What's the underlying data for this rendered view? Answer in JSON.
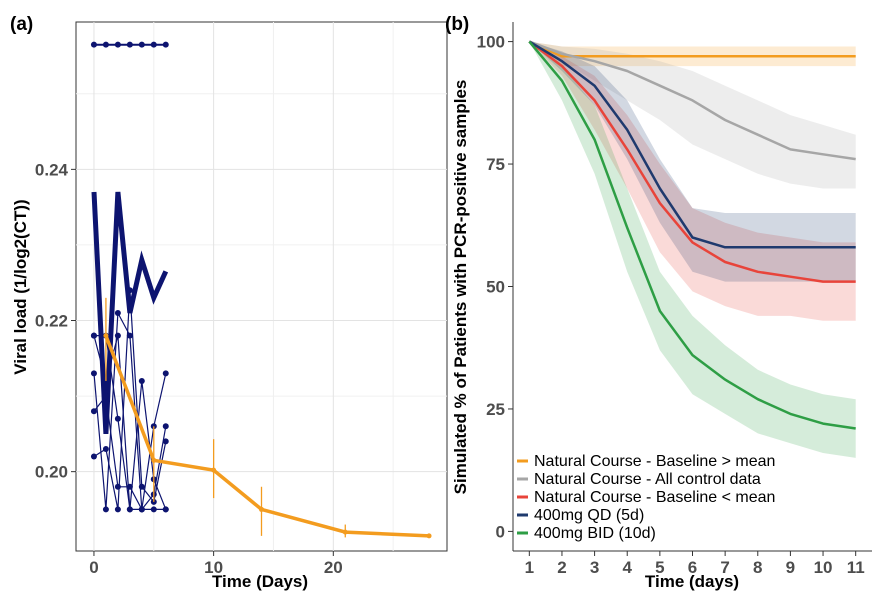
{
  "chart_data": [
    {
      "panel_label": "(a)",
      "type": "line",
      "xlabel": "Time (Days)",
      "ylabel": "Viral load (1/log2(CT))",
      "xlim": [
        -1.5,
        29.5
      ],
      "ylim": [
        0.1895,
        0.2595
      ],
      "x_ticks": [
        0,
        10,
        20
      ],
      "x_tick_labels": [
        "0",
        "10",
        "20"
      ],
      "y_ticks": [
        0.2,
        0.22,
        0.24
      ],
      "y_tick_labels": [
        "0.20",
        "0.22",
        "0.24"
      ],
      "grid": true,
      "colors": {
        "individual": "#0d1470",
        "mean": "#f39c1f"
      },
      "individual_series": [
        {
          "x": [
            0,
            1,
            2,
            3,
            4,
            5,
            6
          ],
          "y": [
            0.2565,
            0.2565,
            0.2565,
            0.2565,
            0.2565,
            0.2565,
            0.2565
          ],
          "markers": true,
          "width": 2
        },
        {
          "x": [
            0,
            1,
            2,
            3,
            4,
            5,
            6
          ],
          "y": [
            0.237,
            0.205,
            0.237,
            0.221,
            0.228,
            0.223,
            0.2265
          ],
          "markers": false,
          "width": 5
        },
        {
          "x": [
            0,
            1,
            2,
            3,
            4,
            5,
            6
          ],
          "y": [
            0.218,
            0.218,
            0.207,
            0.195,
            0.195,
            0.195,
            0.195
          ],
          "markers": true,
          "width": 1.2
        },
        {
          "x": [
            0,
            1,
            2,
            3,
            4,
            5,
            6
          ],
          "y": [
            0.213,
            0.195,
            0.221,
            0.218,
            0.195,
            0.206,
            0.213
          ],
          "markers": true,
          "width": 1.2
        },
        {
          "x": [
            0,
            1,
            2,
            3,
            4,
            5,
            6
          ],
          "y": [
            0.208,
            0.21,
            0.198,
            0.198,
            0.195,
            0.197,
            0.206
          ],
          "markers": true,
          "width": 1.2
        },
        {
          "x": [
            0,
            1,
            2,
            3,
            4,
            5,
            6
          ],
          "y": [
            0.202,
            0.203,
            0.195,
            0.224,
            0.198,
            0.196,
            0.204
          ],
          "markers": true,
          "width": 1.2
        },
        {
          "x": [
            0,
            1,
            2,
            3,
            4,
            5,
            6
          ],
          "y": [
            0.218,
            0.212,
            0.218,
            0.195,
            0.212,
            0.199,
            0.195
          ],
          "markers": true,
          "width": 1.2
        }
      ],
      "mean_series": {
        "x": [
          1,
          5,
          10,
          14,
          21,
          28
        ],
        "y": [
          0.218,
          0.2015,
          0.2002,
          0.195,
          0.192,
          0.1915
        ],
        "err_low": [
          0.212,
          0.196,
          0.1965,
          0.1915,
          0.1913,
          0.1913
        ],
        "err_high": [
          0.223,
          0.206,
          0.2043,
          0.198,
          0.193,
          0.1917
        ]
      }
    },
    {
      "panel_label": "(b)",
      "type": "line",
      "xlabel": "Time (days)",
      "ylabel": "Simulated % of Patients with PCR-positive samples",
      "xlim": [
        0.5,
        11.5
      ],
      "ylim": [
        -4,
        104
      ],
      "x_ticks": [
        1,
        2,
        3,
        4,
        5,
        6,
        7,
        8,
        9,
        10,
        11
      ],
      "x_tick_labels": [
        "1",
        "2",
        "3",
        "4",
        "5",
        "6",
        "7",
        "8",
        "9",
        "10",
        "11"
      ],
      "y_ticks": [
        0,
        25,
        50,
        75,
        100
      ],
      "y_tick_labels": [
        "0",
        "25",
        "50",
        "75",
        "100"
      ],
      "grid": false,
      "legend_position": "bottom-left",
      "x": [
        1,
        2,
        3,
        4,
        5,
        6,
        7,
        8,
        9,
        10,
        11
      ],
      "series": [
        {
          "name": "Natural Course - Baseline > mean",
          "color": "#f39c1f",
          "values": [
            100,
            97,
            97,
            97,
            97,
            97,
            97,
            97,
            97,
            97,
            97
          ],
          "lower": [
            100,
            95,
            95,
            95,
            95,
            95,
            95,
            95,
            95,
            95,
            95
          ],
          "upper": [
            100,
            99,
            99,
            99,
            99,
            99,
            99,
            99,
            99,
            99,
            99
          ]
        },
        {
          "name": "Natural Course - All control data",
          "color": "#a6a6a6",
          "values": [
            100,
            97.5,
            96,
            94,
            91,
            88,
            84,
            81,
            78,
            77,
            76
          ],
          "lower": [
            100,
            96,
            92,
            88,
            84,
            79,
            76,
            73,
            71,
            70,
            70
          ],
          "upper": [
            100,
            99,
            98.5,
            97.5,
            96,
            94,
            91,
            88,
            85,
            83,
            81
          ]
        },
        {
          "name": "Natural Course - Baseline < mean",
          "color": "#e8443a",
          "values": [
            100,
            95,
            88,
            78,
            67,
            59,
            55,
            53,
            52,
            51,
            51
          ],
          "lower": [
            100,
            93,
            82,
            70,
            57,
            49,
            46,
            44,
            44,
            43,
            43
          ],
          "upper": [
            100,
            97,
            93,
            85,
            75,
            66,
            63,
            61,
            60,
            59,
            59
          ]
        },
        {
          "name": "400mg QD (5d)",
          "color": "#1f3a6e",
          "values": [
            100,
            96,
            91,
            82,
            70,
            60,
            58,
            58,
            58,
            58,
            58
          ],
          "lower": [
            100,
            94,
            87,
            76,
            63,
            53,
            51,
            51,
            51,
            51,
            51
          ],
          "upper": [
            100,
            98,
            95,
            88,
            76,
            66,
            65,
            65,
            65,
            65,
            65
          ]
        },
        {
          "name": "400mg BID (10d)",
          "color": "#2e9e45",
          "values": [
            100,
            92,
            80,
            62,
            45,
            36,
            31,
            27,
            24,
            22,
            21
          ],
          "lower": [
            100,
            88,
            73,
            53,
            37,
            28,
            24,
            20,
            18,
            16,
            15
          ],
          "upper": [
            100,
            95,
            87,
            70,
            53,
            44,
            38,
            33,
            30,
            28,
            27
          ]
        }
      ]
    }
  ]
}
